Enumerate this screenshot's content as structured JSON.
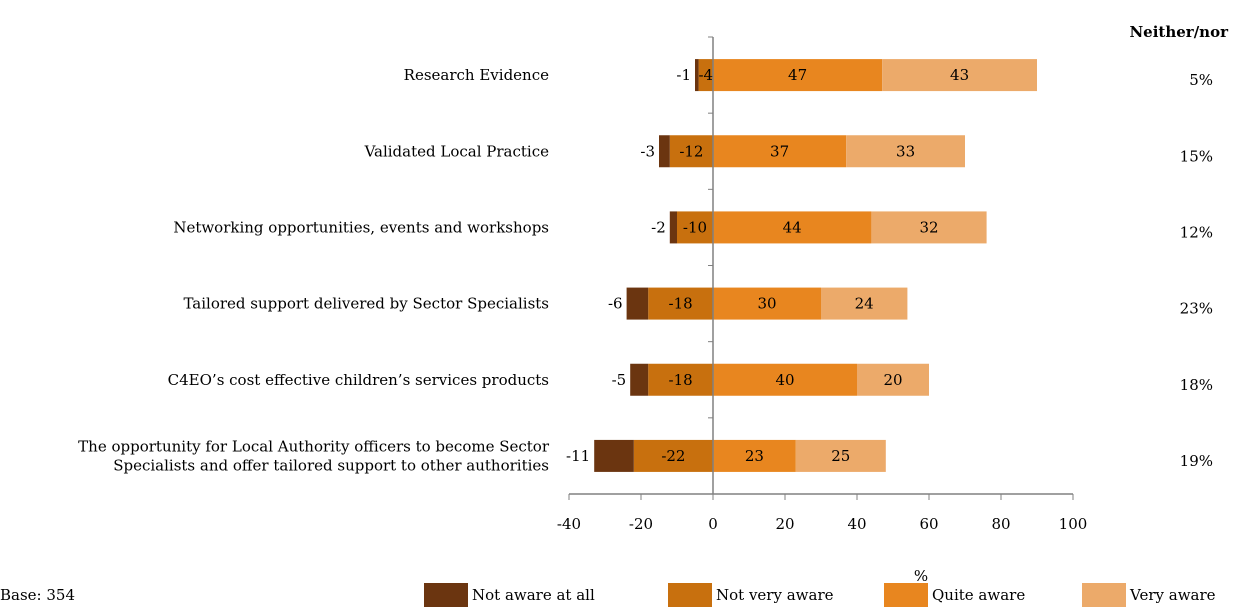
{
  "chart_data": {
    "type": "bar",
    "orientation": "horizontal",
    "stacked": "diverging",
    "categories": [
      [
        "Research Evidence"
      ],
      [
        "Validated Local Practice"
      ],
      [
        "Networking opportunities, events and workshops"
      ],
      [
        "Tailored support delivered by Sector Specialists"
      ],
      [
        "C4EO’s cost effective children’s services products"
      ],
      [
        "The opportunity for Local Authority officers to become Sector",
        "Specialists and offer tailored support to other authorities"
      ]
    ],
    "series": [
      {
        "name": "Not aware at all",
        "color": "#6b3510",
        "values": [
          -1,
          -3,
          -2,
          -6,
          -5,
          -11
        ]
      },
      {
        "name": "Not very aware",
        "color": "#c8700e",
        "values": [
          -4,
          -12,
          -10,
          -18,
          -18,
          -22
        ]
      },
      {
        "name": "Quite aware",
        "color": "#e8861f",
        "values": [
          47,
          37,
          44,
          30,
          40,
          23
        ]
      },
      {
        "name": "Very aware",
        "color": "#ecaa6a",
        "values": [
          43,
          33,
          32,
          24,
          20,
          25
        ]
      }
    ],
    "neither": {
      "header": "Neither/nor",
      "values": [
        "5%",
        "15%",
        "12%",
        "23%",
        "18%",
        "19%"
      ]
    },
    "xlim": [
      -40,
      100
    ],
    "xticks": [
      "-40",
      "-20",
      "0",
      "20",
      "40",
      "60",
      "80",
      "100"
    ],
    "xlabel": "%",
    "legend_position": "bottom",
    "grid": false
  },
  "base_note": "Base: 354"
}
